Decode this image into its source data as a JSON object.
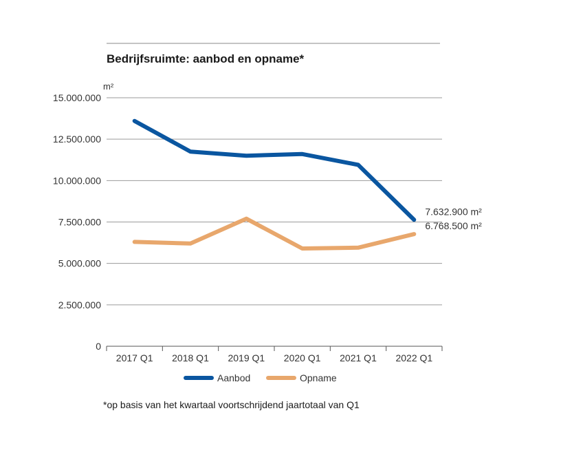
{
  "colors": {
    "aanbod": "#0a56a0",
    "opname": "#e8a76c",
    "grid": "#9a9a9a",
    "axis": "#555555"
  },
  "chart_data": {
    "type": "line",
    "title": "Bedrijfsruimte: aanbod en opname*",
    "ylabel": "m²",
    "xlabel": "",
    "ylim": [
      0,
      15000000
    ],
    "yticks": [
      0,
      2500000,
      5000000,
      7500000,
      10000000,
      12500000,
      15000000
    ],
    "ytick_labels": [
      "0",
      "2.500.000",
      "5.000.000",
      "7.500.000",
      "10.000.000",
      "12.500.000",
      "15.000.000"
    ],
    "categories": [
      "2017 Q1",
      "2018 Q1",
      "2019 Q1",
      "2020 Q1",
      "2021 Q1",
      "2022 Q1"
    ],
    "series": [
      {
        "name": "Aanbod",
        "color": "#0a56a0",
        "values": [
          13600000,
          11750000,
          11500000,
          11600000,
          10950000,
          7632900
        ],
        "end_label": "7.632.900 m²"
      },
      {
        "name": "Opname",
        "color": "#e8a76c",
        "values": [
          6300000,
          6200000,
          7700000,
          5900000,
          5950000,
          6768500
        ],
        "end_label": "6.768.500 m²"
      }
    ],
    "grid": true,
    "legend": "bottom",
    "footnote": "*op basis van het kwartaal voortschrijdend jaartotaal van Q1"
  }
}
